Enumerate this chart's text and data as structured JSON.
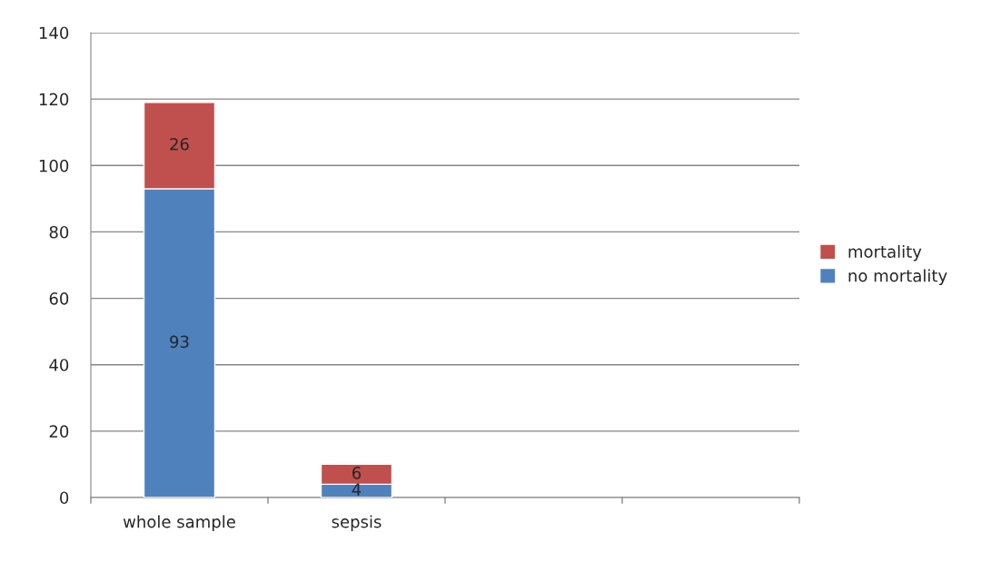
{
  "chart_data": {
    "type": "bar",
    "stacked": true,
    "categories": [
      "whole sample",
      "sepsis",
      null,
      null
    ],
    "series": [
      {
        "name": "no mortality",
        "color": "#4f81bd",
        "values": [
          93,
          4,
          null,
          null
        ]
      },
      {
        "name": "mortality",
        "color": "#c0504d",
        "values": [
          26,
          6,
          null,
          null
        ]
      }
    ],
    "ylim": [
      0,
      140
    ],
    "yticks": [
      0,
      20,
      40,
      60,
      80,
      100,
      120,
      140
    ],
    "grid": "y",
    "legend": "right",
    "data_labels": true
  }
}
